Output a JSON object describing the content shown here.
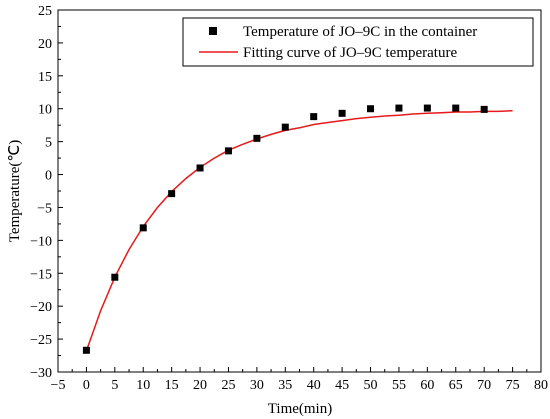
{
  "chart_data": {
    "type": "scatter",
    "xlabel": "Time(min)",
    "ylabel": "Temperature(℃)",
    "xlim": [
      -5,
      80
    ],
    "ylim": [
      -30,
      25
    ],
    "x_ticks": [
      -5,
      0,
      5,
      10,
      15,
      20,
      25,
      30,
      35,
      40,
      45,
      50,
      55,
      60,
      65,
      70,
      75,
      80
    ],
    "y_ticks": [
      -30,
      -25,
      -20,
      -15,
      -10,
      -5,
      0,
      5,
      10,
      15,
      20,
      25
    ],
    "grid": false,
    "legend_position": "top-right",
    "series": [
      {
        "name": "Temperature of JO–9C in the container",
        "kind": "scatter",
        "marker": "square",
        "color": "#000000",
        "x": [
          0,
          5,
          10,
          15,
          20,
          25,
          30,
          35,
          40,
          45,
          50,
          55,
          60,
          65,
          70
        ],
        "y": [
          -26.7,
          -15.6,
          -8.1,
          -2.9,
          1.0,
          3.6,
          5.5,
          7.2,
          8.8,
          9.3,
          10.0,
          10.1,
          10.1,
          10.1,
          9.9
        ]
      },
      {
        "name": "Fitting curve of JO–9C temperature",
        "kind": "line",
        "color": "#e8191b",
        "x": [
          0,
          2.5,
          5,
          7.5,
          10,
          12.5,
          15,
          17.5,
          20,
          22.5,
          25,
          27.5,
          30,
          32.5,
          35,
          37.5,
          40,
          42.5,
          45,
          47.5,
          50,
          52.5,
          55,
          57.5,
          60,
          62.5,
          65,
          67.5,
          70,
          72.5,
          75
        ],
        "y": [
          -26.8,
          -20.7,
          -15.6,
          -11.4,
          -7.9,
          -5.0,
          -2.6,
          -0.6,
          1.1,
          2.5,
          3.7,
          4.6,
          5.4,
          6.1,
          6.7,
          7.1,
          7.6,
          7.9,
          8.2,
          8.5,
          8.7,
          8.9,
          9.0,
          9.2,
          9.3,
          9.4,
          9.5,
          9.5,
          9.6,
          9.6,
          9.7
        ]
      }
    ]
  }
}
